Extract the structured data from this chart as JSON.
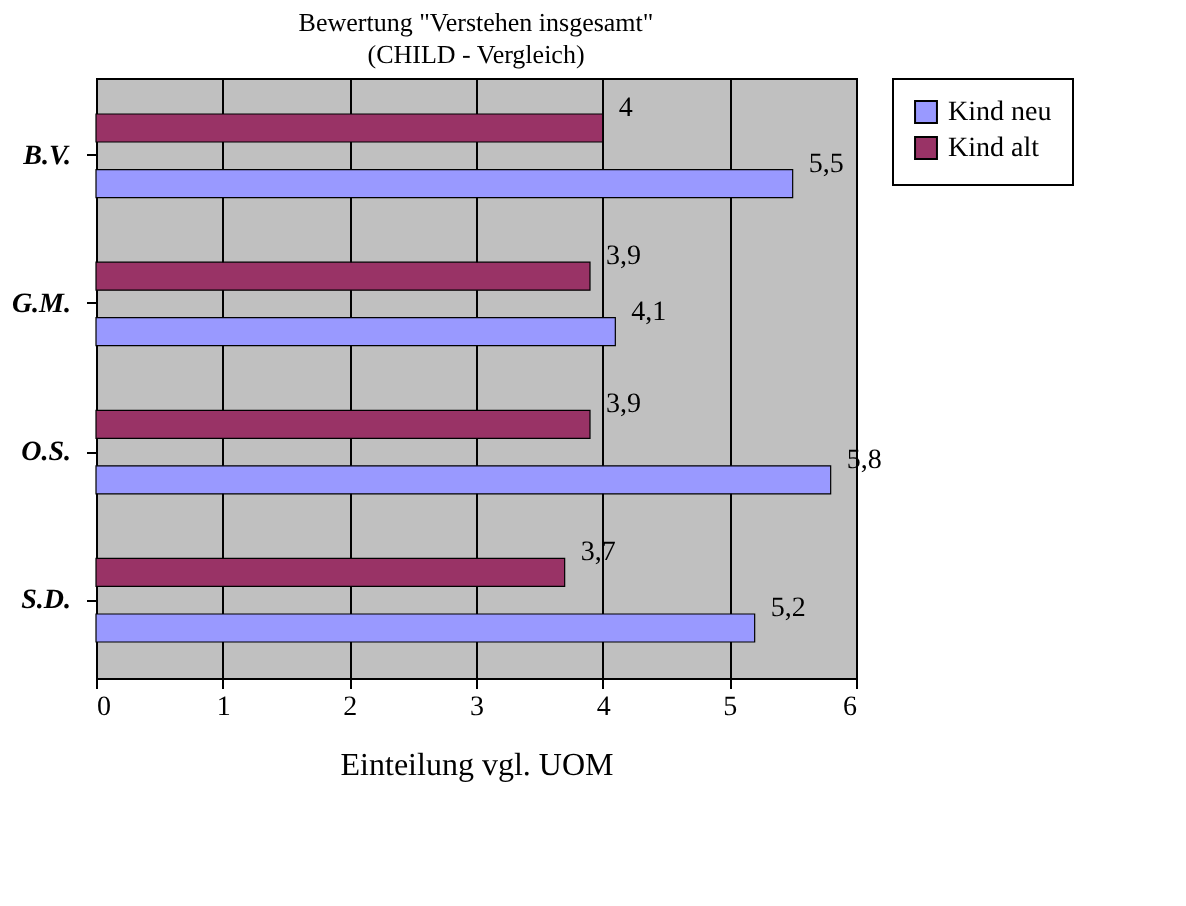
{
  "chart_data": {
    "type": "bar",
    "orientation": "horizontal",
    "title": "Bewertung \"Verstehen insgesamt\"",
    "subtitle": "(CHILD - Vergleich)",
    "xlabel": "Einteilung vgl. UOM",
    "categories": [
      "B.V.",
      "G.M.",
      "O.S.",
      "S.D."
    ],
    "series": [
      {
        "name": "Kind neu",
        "color": "#9999ff",
        "values": [
          5.5,
          4.1,
          5.8,
          5.2
        ],
        "value_labels": [
          "5,5",
          "4,1",
          "5,8",
          "5,2"
        ]
      },
      {
        "name": "Kind alt",
        "color": "#993366",
        "values": [
          4,
          3.9,
          3.9,
          3.7
        ],
        "value_labels": [
          "4",
          "3,9",
          "3,9",
          "3,7"
        ]
      }
    ],
    "xlim": [
      0,
      6
    ],
    "xticks": [
      0,
      1,
      2,
      3,
      4,
      5,
      6
    ],
    "grid": "x",
    "legend": "right"
  }
}
